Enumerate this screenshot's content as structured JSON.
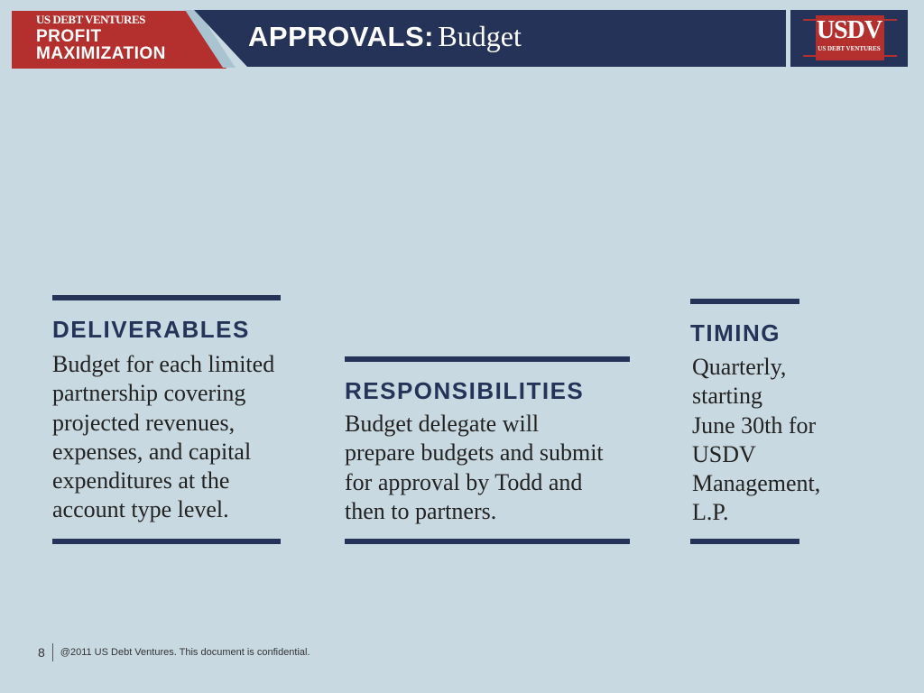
{
  "header": {
    "company_small": "US DEBT VENTURES",
    "section_line1": "PROFIT",
    "section_line2": "MAXIMIZATION",
    "title_bold": "APPROVALS:",
    "title_rest": "Budget",
    "logo_text": "USDV",
    "logo_subtext": "US DEBT VENTURES"
  },
  "columns": [
    {
      "heading": "DELIVERABLES",
      "lines": [
        "Budget for each limited",
        "partnership covering",
        "projected revenues,",
        "expenses, and capital",
        "expenditures at the",
        "account type level."
      ]
    },
    {
      "heading": "RESPONSIBILITIES",
      "lines": [
        "Budget delegate will",
        "prepare budgets and submit",
        "for approval by Todd and",
        "then to partners."
      ]
    },
    {
      "heading": "TIMING",
      "lines": [
        "Quarterly,",
        "starting",
        "June 30th for",
        "USDV",
        "Management,",
        "L.P."
      ]
    }
  ],
  "footer": {
    "page": "8",
    "copyright": "@2011 US Debt Ventures. This document is confidential."
  },
  "colors": {
    "navy": "#253358",
    "red": "#b3302e",
    "background": "#c8d9e1"
  }
}
